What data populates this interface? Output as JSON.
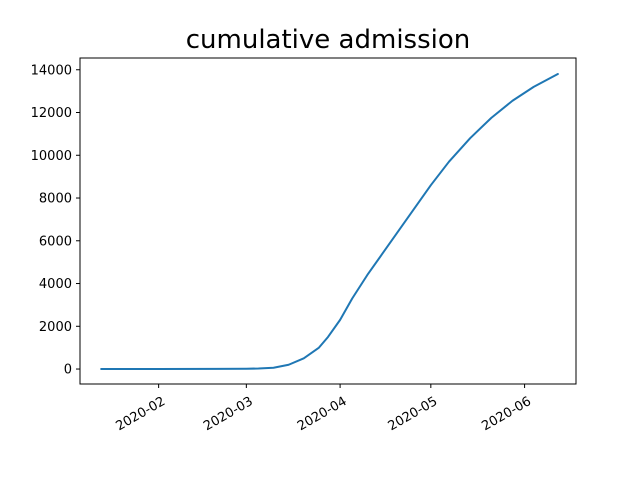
{
  "chart_data": {
    "type": "line",
    "title": "cumulative admission",
    "xlabel": "",
    "ylabel": "",
    "x_axis": "date",
    "xlim": [
      "2020-01-06",
      "2020-06-18"
    ],
    "ylim": [
      -700,
      14550
    ],
    "grid": false,
    "x_ticks": [
      "2020-02",
      "2020-03",
      "2020-04",
      "2020-05",
      "2020-06"
    ],
    "x_tick_dates": [
      "2020-02-01",
      "2020-03-01",
      "2020-04-01",
      "2020-05-01",
      "2020-06-01"
    ],
    "y_ticks": [
      0,
      2000,
      4000,
      6000,
      8000,
      10000,
      12000,
      14000
    ],
    "series": [
      {
        "color": "#1f77b4",
        "x": [
          "2020-01-13",
          "2020-02-01",
          "2020-02-20",
          "2020-03-01",
          "2020-03-05",
          "2020-03-10",
          "2020-03-15",
          "2020-03-20",
          "2020-03-25",
          "2020-03-28",
          "2020-04-01",
          "2020-04-05",
          "2020-04-10",
          "2020-04-15",
          "2020-04-20",
          "2020-04-25",
          "2020-05-01",
          "2020-05-07",
          "2020-05-14",
          "2020-05-21",
          "2020-05-28",
          "2020-06-04",
          "2020-06-12"
        ],
        "y": [
          0,
          0,
          5,
          15,
          25,
          60,
          200,
          500,
          1000,
          1500,
          2300,
          3300,
          4400,
          5400,
          6400,
          7400,
          8600,
          9700,
          10800,
          11750,
          12550,
          13200,
          13800
        ]
      }
    ]
  }
}
